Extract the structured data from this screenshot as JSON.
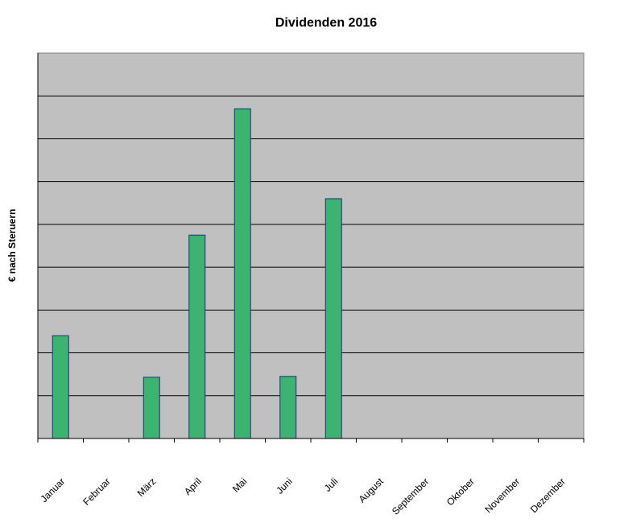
{
  "chart_data": {
    "type": "bar",
    "title": "Dividenden 2016",
    "ylabel": "€ nach Steruern",
    "xlabel": "",
    "categories": [
      "Januar",
      "Februar",
      "März",
      "April",
      "Mai",
      "Juni",
      "Juli",
      "August",
      "September",
      "Oktober",
      "November",
      "Dezember"
    ],
    "values": [
      2.4,
      0,
      1.43,
      4.75,
      7.7,
      1.45,
      5.6,
      0,
      0,
      0,
      0,
      0
    ],
    "ylim": [
      0,
      9
    ],
    "y_tick_labels_visible": false,
    "grid": true,
    "legend": "none",
    "colors": {
      "bar_fill": "#3cb371",
      "bar_stroke": "#1f2f7a",
      "plot_background": "#c0c0c0",
      "gridline": "#000000"
    }
  }
}
